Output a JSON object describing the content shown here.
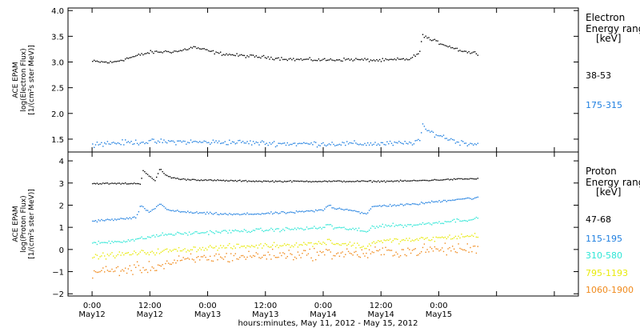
{
  "chart_data": [
    {
      "type": "scatter",
      "panel": "electron",
      "ylabel_lines": [
        "ACE EPAM",
        "log(Electron Flux)",
        "[1/(cm²s ster MeV)]"
      ],
      "ylim": [
        1.25,
        4.05
      ],
      "yticks": [
        1.5,
        2.0,
        2.5,
        3.0,
        3.5,
        4.0
      ],
      "ytick_labels": [
        "1.5",
        "2.0",
        "2.5",
        "3.0",
        "3.5",
        "4.0"
      ],
      "xlim_hours": [
        -5,
        101
      ],
      "legend_title": [
        "Electron",
        "Energy ranges",
        "[keV]"
      ],
      "series": [
        {
          "name": "38-53",
          "color": "#000000",
          "noise": 0.03,
          "x": [
            0,
            4,
            8,
            12,
            18,
            21,
            26,
            30,
            36,
            42,
            48,
            54,
            60,
            66,
            68,
            68.5,
            70,
            73,
            76,
            78,
            80
          ],
          "y": [
            3.02,
            3.0,
            3.1,
            3.2,
            3.22,
            3.3,
            3.18,
            3.14,
            3.1,
            3.06,
            3.05,
            3.06,
            3.04,
            3.07,
            3.2,
            3.55,
            3.45,
            3.35,
            3.25,
            3.2,
            3.18
          ]
        },
        {
          "name": "175-315",
          "color": "#1f7fe0",
          "noise": 0.05,
          "x": [
            0,
            6,
            12,
            18,
            24,
            30,
            36,
            42,
            48,
            54,
            60,
            66,
            68,
            68.5,
            70,
            73,
            76,
            78,
            80
          ],
          "y": [
            1.42,
            1.44,
            1.46,
            1.46,
            1.45,
            1.45,
            1.43,
            1.42,
            1.42,
            1.42,
            1.42,
            1.43,
            1.5,
            1.75,
            1.65,
            1.55,
            1.45,
            1.43,
            1.42
          ]
        }
      ]
    },
    {
      "type": "scatter",
      "panel": "proton",
      "ylabel_lines": [
        "ACE EPAM",
        "log(Proton Flux)",
        "[1/(cm²s ster MeV)]"
      ],
      "ylim": [
        -2.1,
        4.4
      ],
      "yticks": [
        -2,
        -1,
        0,
        1,
        2,
        3,
        4
      ],
      "ytick_labels": [
        "−2",
        "−1",
        "0",
        "1",
        "2",
        "3",
        "4"
      ],
      "xlim_hours": [
        -5,
        101
      ],
      "xticks_hours": [
        0,
        12,
        24,
        36,
        48,
        60,
        72,
        84,
        96
      ],
      "xtick_labels": [
        [
          "0:00",
          "May12"
        ],
        [
          "12:00",
          "May12"
        ],
        [
          "0:00",
          "May13"
        ],
        [
          "12:00",
          "May13"
        ],
        [
          "0:00",
          "May14"
        ],
        [
          "12:00",
          "May14"
        ],
        [
          "0:00",
          "May15"
        ]
      ],
      "xtick_label_hours": [
        0,
        12,
        24,
        36,
        48,
        60,
        72
      ],
      "xlabel": "hours:minutes, May 11, 2012 - May 15, 2012",
      "legend_title": [
        "Proton",
        "Energy ranges",
        "[keV]"
      ],
      "series": [
        {
          "name": "47-68",
          "color": "#000000",
          "noise": 0.03,
          "x": [
            0,
            8,
            10,
            10.5,
            12,
            13,
            14,
            15,
            16,
            18,
            24,
            30,
            36,
            42,
            48,
            54,
            60,
            66,
            70,
            76,
            80
          ],
          "y": [
            3.0,
            3.0,
            3.0,
            3.6,
            3.3,
            3.1,
            3.7,
            3.4,
            3.3,
            3.2,
            3.15,
            3.12,
            3.1,
            3.1,
            3.1,
            3.1,
            3.1,
            3.12,
            3.15,
            3.2,
            3.22
          ]
        },
        {
          "name": "115-195",
          "color": "#1f7fe0",
          "noise": 0.05,
          "x": [
            0,
            6,
            9,
            10,
            11,
            12,
            14,
            15,
            17,
            20,
            24,
            30,
            36,
            42,
            48,
            49,
            50,
            54,
            57,
            58,
            60,
            66,
            70,
            76,
            80
          ],
          "y": [
            1.3,
            1.4,
            1.45,
            2.0,
            1.8,
            1.7,
            2.1,
            1.9,
            1.75,
            1.7,
            1.65,
            1.6,
            1.65,
            1.7,
            1.8,
            2.05,
            1.9,
            1.8,
            1.6,
            1.95,
            2.0,
            2.05,
            2.15,
            2.3,
            2.35
          ]
        },
        {
          "name": "310-580",
          "color": "#2ee6d6",
          "noise": 0.08,
          "x": [
            0,
            6,
            10,
            12,
            15,
            20,
            24,
            30,
            36,
            42,
            48,
            49,
            50,
            54,
            57,
            58,
            60,
            66,
            70,
            76,
            80
          ],
          "y": [
            0.3,
            0.4,
            0.5,
            0.6,
            0.7,
            0.75,
            0.8,
            0.85,
            0.9,
            0.95,
            1.0,
            1.2,
            1.0,
            0.95,
            0.8,
            1.05,
            1.1,
            1.12,
            1.2,
            1.35,
            1.4
          ]
        },
        {
          "name": "795-1193",
          "color": "#e8ea0a",
          "noise": 0.12,
          "x": [
            0,
            6,
            12,
            18,
            24,
            30,
            36,
            42,
            48,
            49,
            50,
            54,
            57,
            58,
            60,
            66,
            70,
            76,
            80
          ],
          "y": [
            -0.3,
            -0.2,
            -0.1,
            0.0,
            0.1,
            0.15,
            0.2,
            0.25,
            0.3,
            0.5,
            0.3,
            0.25,
            0.1,
            0.35,
            0.4,
            0.45,
            0.5,
            0.6,
            0.65
          ]
        },
        {
          "name": "1060-1900",
          "color": "#f08a1c",
          "noise": 0.25,
          "x": [
            0,
            6,
            12,
            18,
            24,
            30,
            36,
            42,
            48,
            54,
            57,
            58,
            60,
            66,
            70,
            76,
            80
          ],
          "y": [
            -1.0,
            -0.9,
            -0.8,
            -0.5,
            -0.35,
            -0.3,
            -0.25,
            -0.2,
            -0.15,
            -0.15,
            -0.2,
            -0.1,
            -0.1,
            -0.05,
            0.0,
            0.05,
            0.05
          ]
        }
      ]
    }
  ]
}
